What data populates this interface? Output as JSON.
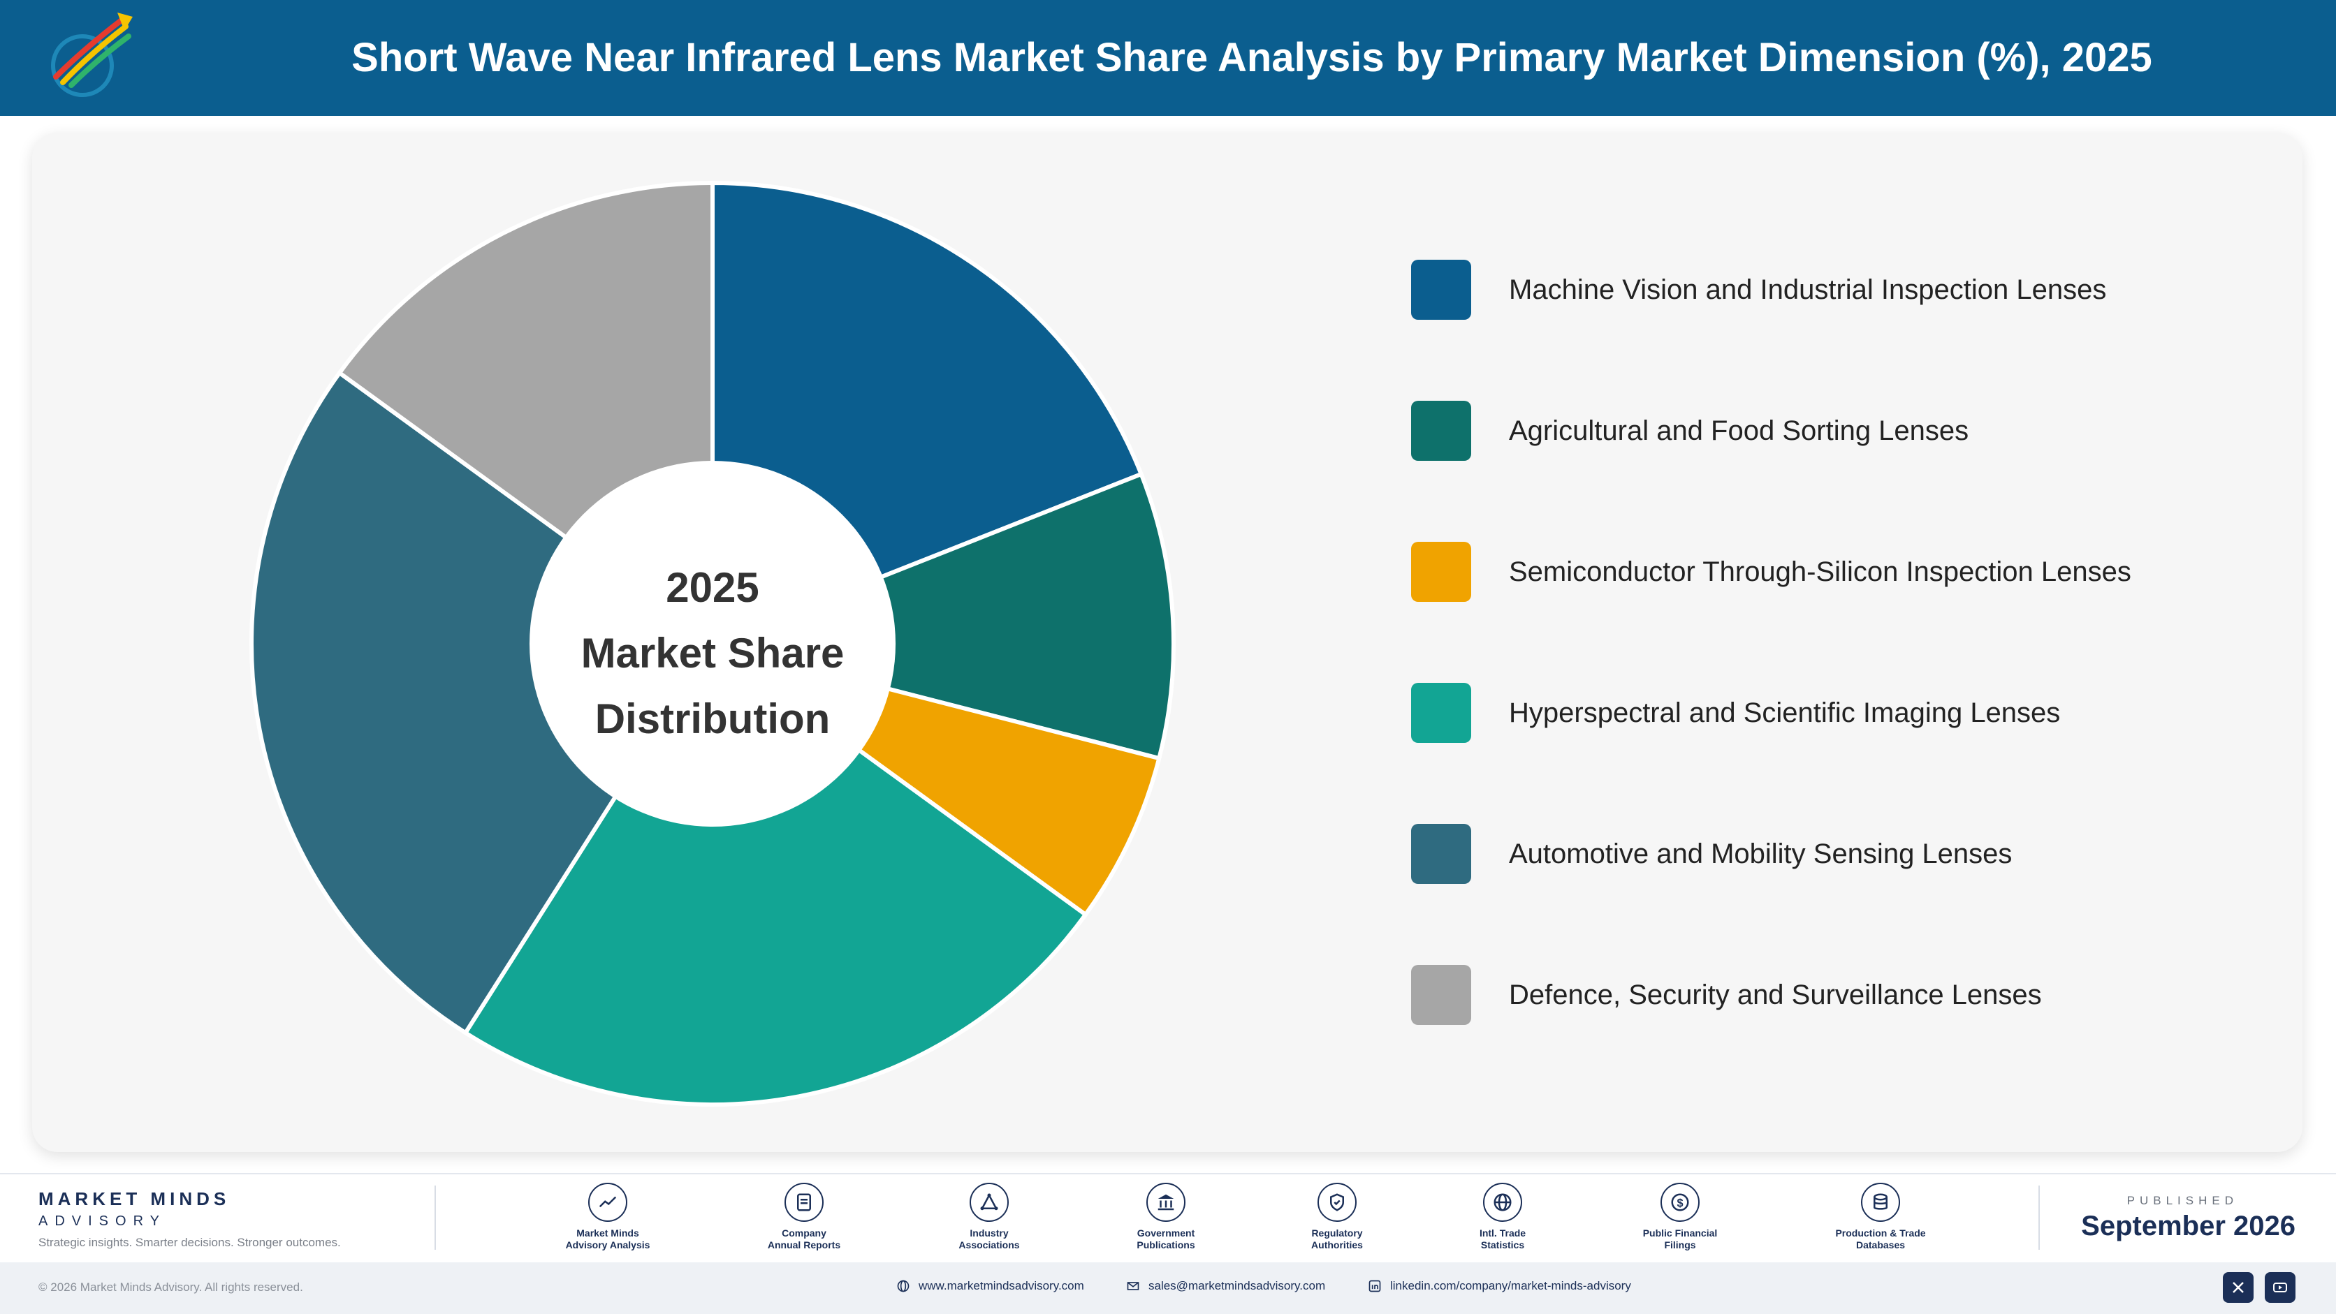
{
  "header": {
    "title": "Short Wave Near Infrared Lens Market Share Analysis by Primary Market Dimension (%), 2025",
    "logo_icon": "rocket-globe-logo"
  },
  "chart_data": {
    "type": "pie",
    "donut": true,
    "center_label": [
      "2025",
      "Market Share",
      "Distribution"
    ],
    "categories": [
      "Machine Vision and Industrial Inspection Lenses",
      "Agricultural and Food Sorting Lenses",
      "Semiconductor Through-Silicon Inspection Lenses",
      "Hyperspectral and Scientific Imaging Lenses",
      "Automotive and Mobility Sensing Lenses",
      "Defence, Security and Surveillance Lenses"
    ],
    "values": [
      19,
      10,
      6,
      24,
      26,
      15
    ],
    "colors": [
      "#0b5e8f",
      "#0e716b",
      "#f0a300",
      "#12a594",
      "#2f6b80",
      "#a6a6a6"
    ],
    "legend_position": "right"
  },
  "footer": {
    "brand_name": "MARKET MINDS",
    "brand_sub": "ADVISORY",
    "tagline": "Strategic insights. Smarter decisions. Stronger outcomes.",
    "sources": [
      {
        "line1": "Market Minds",
        "line2": "Advisory Analysis",
        "icon": "trend-chart-icon"
      },
      {
        "line1": "Company",
        "line2": "Annual Reports",
        "icon": "document-icon"
      },
      {
        "line1": "Industry",
        "line2": "Associations",
        "icon": "network-icon"
      },
      {
        "line1": "Government",
        "line2": "Publications",
        "icon": "government-building-icon"
      },
      {
        "line1": "Regulatory",
        "line2": "Authorities",
        "icon": "shield-check-icon"
      },
      {
        "line1": "Intl. Trade",
        "line2": "Statistics",
        "icon": "globe-icon"
      },
      {
        "line1": "Public Financial",
        "line2": "Filings",
        "icon": "dollar-coin-icon"
      },
      {
        "line1": "Production & Trade",
        "line2": "Databases",
        "icon": "database-icon"
      }
    ],
    "published_label": "PUBLISHED",
    "published_date": "September 2026",
    "copyright": "© 2026 Market Minds Advisory. All rights reserved.",
    "website": "www.marketmindsadvisory.com",
    "email": "sales@marketmindsadvisory.com",
    "linkedin": "linkedin.com/company/market-minds-advisory"
  }
}
